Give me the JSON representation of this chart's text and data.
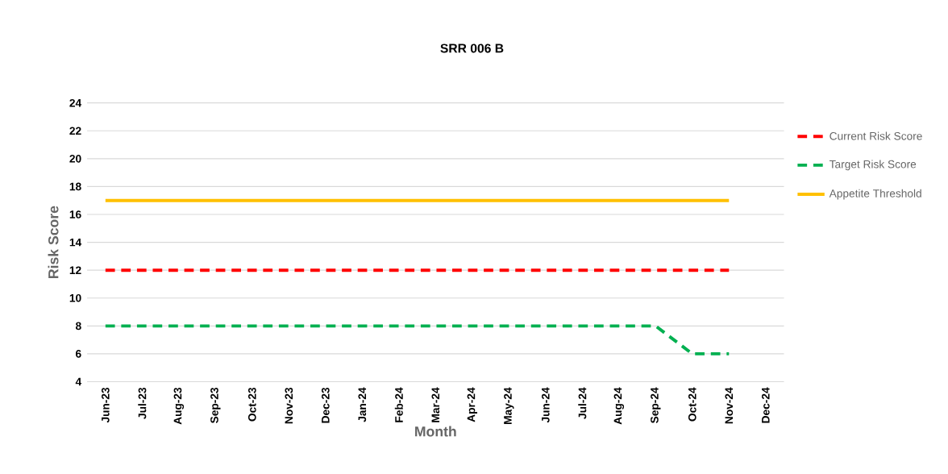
{
  "chart_data": {
    "type": "line",
    "title": "SRR 006 B",
    "xlabel": "Month",
    "ylabel": "Risk Score",
    "categories": [
      "Jun-23",
      "Jul-23",
      "Aug-23",
      "Sep-23",
      "Oct-23",
      "Nov-23",
      "Dec-23",
      "Jan-24",
      "Feb-24",
      "Mar-24",
      "Apr-24",
      "May-24",
      "Jun-24",
      "Jul-24",
      "Aug-24",
      "Sep-24",
      "Oct-24",
      "Nov-24",
      "Dec-24"
    ],
    "series": [
      {
        "name": "Current Risk Score",
        "color": "#ff0000",
        "line_style": "dashed",
        "values": [
          12,
          12,
          12,
          12,
          12,
          12,
          12,
          12,
          12,
          12,
          12,
          12,
          12,
          12,
          12,
          12,
          12,
          12,
          null
        ]
      },
      {
        "name": "Target Risk Score",
        "color": "#00b050",
        "line_style": "dashed",
        "values": [
          8,
          8,
          8,
          8,
          8,
          8,
          8,
          8,
          8,
          8,
          8,
          8,
          8,
          8,
          8,
          8,
          6,
          6,
          null
        ]
      },
      {
        "name": "Appetite Threshold",
        "color": "#ffc000",
        "line_style": "solid",
        "values": [
          17,
          17,
          17,
          17,
          17,
          17,
          17,
          17,
          17,
          17,
          17,
          17,
          17,
          17,
          17,
          17,
          17,
          17,
          null
        ]
      }
    ],
    "ylim": [
      4,
      24
    ],
    "yticks": [
      4,
      6,
      8,
      10,
      12,
      14,
      16,
      18,
      20,
      22,
      24
    ],
    "grid": "y",
    "legend": "right",
    "marker": "none"
  }
}
